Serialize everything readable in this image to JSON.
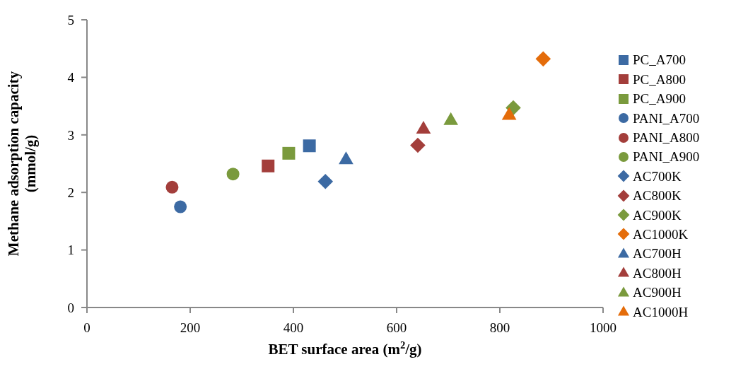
{
  "chart_data": {
    "type": "scatter",
    "xlabel": "BET surface area (m$^{2}$/g)",
    "ylabel": "Methane adsorption capacity (mmol/g)",
    "xlim": [
      0,
      1000
    ],
    "xticks": [
      0,
      200,
      400,
      600,
      800,
      1000
    ],
    "ylim": [
      0,
      5
    ],
    "yticks": [
      0,
      1,
      2,
      3,
      4,
      5
    ],
    "grid": false,
    "legend": "right",
    "series": [
      {
        "name": "PC_A700",
        "color": "#3c6aa3",
        "marker": "square",
        "x": [
          431
        ],
        "values": [
          2.81
        ]
      },
      {
        "name": "PC_A800",
        "color": "#a33e3b",
        "marker": "square",
        "x": [
          351
        ],
        "values": [
          2.46
        ]
      },
      {
        "name": "PC_A900",
        "color": "#7a9a3d",
        "marker": "square",
        "x": [
          391
        ],
        "values": [
          2.68
        ]
      },
      {
        "name": "PANI_A700",
        "color": "#3c6aa3",
        "marker": "circle",
        "x": [
          181
        ],
        "values": [
          1.75
        ]
      },
      {
        "name": "PANI_A800",
        "color": "#a33e3b",
        "marker": "circle",
        "x": [
          165
        ],
        "values": [
          2.09
        ]
      },
      {
        "name": "PANI_A900",
        "color": "#7a9a3d",
        "marker": "circle",
        "x": [
          283
        ],
        "values": [
          2.32
        ]
      },
      {
        "name": "AC700K",
        "color": "#3c6aa3",
        "marker": "diamond",
        "x": [
          462
        ],
        "values": [
          2.19
        ]
      },
      {
        "name": "AC800K",
        "color": "#a33e3b",
        "marker": "diamond",
        "x": [
          641
        ],
        "values": [
          2.82
        ]
      },
      {
        "name": "AC900K",
        "color": "#7a9a3d",
        "marker": "diamond",
        "x": [
          826
        ],
        "values": [
          3.47
        ]
      },
      {
        "name": "AC1000K",
        "color": "#e46c0a",
        "marker": "diamond",
        "x": [
          884
        ],
        "values": [
          4.32
        ]
      },
      {
        "name": "AC700H",
        "color": "#3c6aa3",
        "marker": "triangle",
        "x": [
          502
        ],
        "values": [
          2.58
        ]
      },
      {
        "name": "AC800H",
        "color": "#a33e3b",
        "marker": "triangle",
        "x": [
          652
        ],
        "values": [
          3.11
        ]
      },
      {
        "name": "AC900H",
        "color": "#7a9a3d",
        "marker": "triangle",
        "x": [
          705
        ],
        "values": [
          3.26
        ]
      },
      {
        "name": "AC1000H",
        "color": "#e46c0a",
        "marker": "triangle",
        "x": [
          818
        ],
        "values": [
          3.35
        ]
      }
    ]
  }
}
